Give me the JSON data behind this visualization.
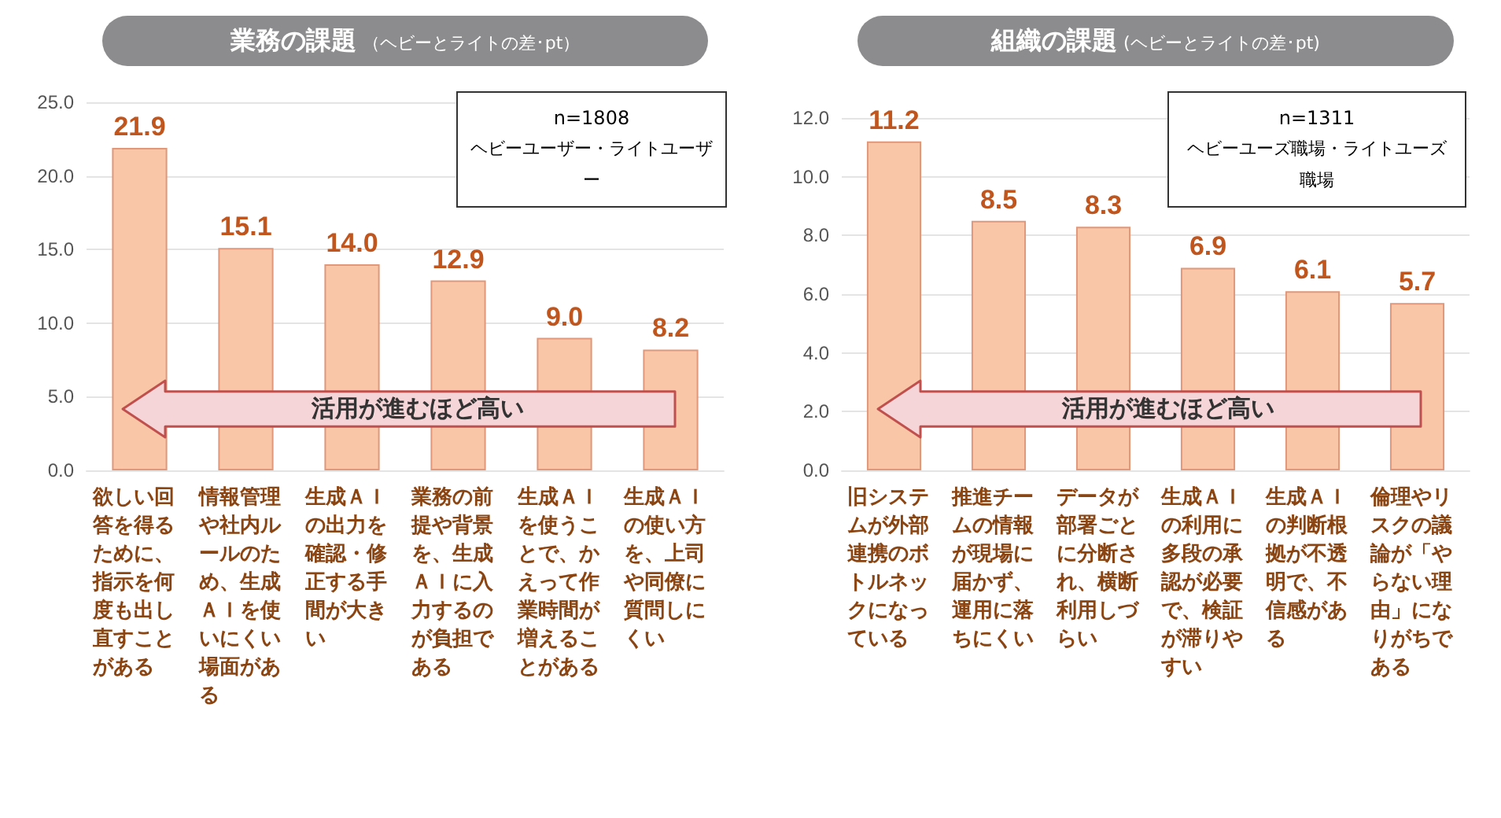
{
  "chart_data": [
    {
      "type": "bar",
      "title": "業務の課題",
      "subtitle": "（ヘビーとライトの差･pt）",
      "categories": [
        "欲しい回答を得るために、指示を何度も出し直すことがある",
        "情報管理や社内ルールのため、生成ＡＩを使いにくい場面がある",
        "生成ＡＩの出力を確認・修正する手間が大きい",
        "業務の前提や背景を、生成ＡＩに入力するのが負担である",
        "生成ＡＩを使うことで、かえって作業時間が増えることがある",
        "生成ＡＩの使い方を、上司や同僚に質問しにくい"
      ],
      "values": [
        21.9,
        15.1,
        14.0,
        12.9,
        9.0,
        8.2
      ],
      "value_labels": [
        "21.9",
        "15.1",
        "14.0",
        "12.9",
        "9.0",
        "8.2"
      ],
      "color": "#f9c6a8",
      "ylim": [
        0,
        25
      ],
      "yticks": [
        {
          "value": 0,
          "label": "0.0"
        },
        {
          "value": 5,
          "label": "5.0"
        },
        {
          "value": 10,
          "label": "10.0"
        },
        {
          "value": 15,
          "label": "15.0"
        },
        {
          "value": 20,
          "label": "20.0"
        },
        {
          "value": 25,
          "label": "25.0"
        }
      ],
      "grid": "y",
      "annotations": [
        "n=1808",
        "ヘビーユーザー・ライトユーザー",
        "活用が進むほど高い"
      ]
    },
    {
      "type": "bar",
      "title": "組織の課題",
      "subtitle": "(ヘビーとライトの差･pt)",
      "categories": [
        "旧システムが外部連携のボトルネックになっている",
        "推進チームの情報が現場に届かず、運用に落ちにくい",
        "データが部署ごとに分断され、横断利用しづらい",
        "生成ＡＩの利用に多段の承認が必要で、検証が滞りやすい",
        "生成ＡＩの判断根拠が不透明で、不信感がある",
        "倫理やリスクの議論が「やらない理由」になりがちである"
      ],
      "values": [
        11.2,
        8.5,
        8.3,
        6.9,
        6.1,
        5.7
      ],
      "value_labels": [
        "11.2",
        "8.5",
        "8.3",
        "6.9",
        "6.1",
        "5.7"
      ],
      "color": "#f9c6a8",
      "ylim": [
        0,
        12
      ],
      "yticks": [
        {
          "value": 0,
          "label": "0.0"
        },
        {
          "value": 2,
          "label": "2.0"
        },
        {
          "value": 4,
          "label": "4.0"
        },
        {
          "value": 6,
          "label": "6.0"
        },
        {
          "value": 8,
          "label": "8.0"
        },
        {
          "value": 10,
          "label": "10.0"
        },
        {
          "value": 12,
          "label": "12.0"
        }
      ],
      "grid": "y",
      "annotations": [
        "n=1311",
        "ヘビーユーズ職場・ライトユーズ職場",
        "活用が進むほど高い"
      ]
    }
  ]
}
